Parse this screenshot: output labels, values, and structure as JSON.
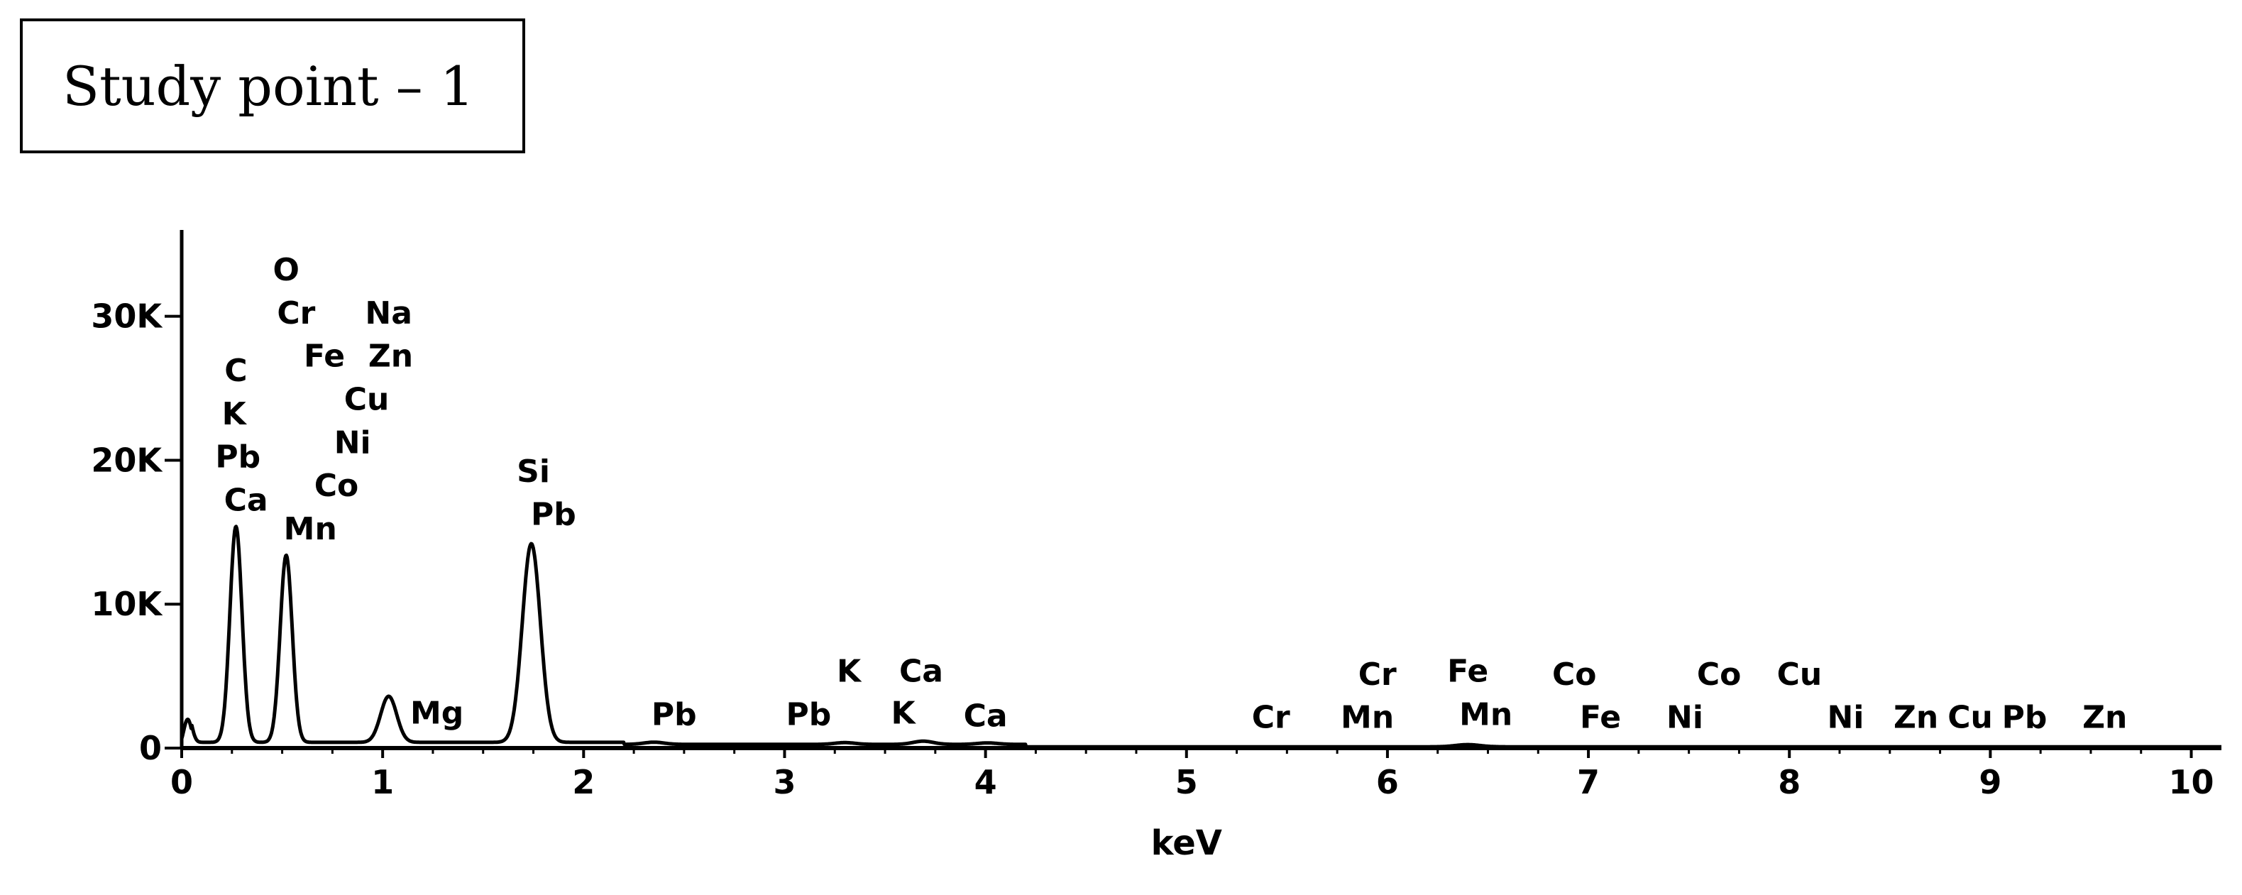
{
  "title_box": {
    "text": "Study point – 1"
  },
  "chart_data": {
    "type": "line",
    "title": "",
    "xlabel": "keV",
    "ylabel": "",
    "xlim": [
      0,
      10.15
    ],
    "ylim": [
      0,
      36000
    ],
    "x_ticks": [
      0,
      1,
      2,
      3,
      4,
      5,
      6,
      7,
      8,
      9,
      10
    ],
    "x_tick_labels": [
      "0",
      "1",
      "2",
      "3",
      "4",
      "5",
      "6",
      "7",
      "8",
      "9",
      "10"
    ],
    "y_ticks": [
      0,
      10000,
      20000,
      30000
    ],
    "y_tick_labels": [
      "0",
      "10K",
      "20K",
      "30K"
    ],
    "grid": false,
    "series": [
      {
        "peaks": [
          {
            "x": 0.03,
            "y": 2000,
            "w": 0.02
          },
          {
            "x": 0.27,
            "y": 15000,
            "w": 0.03
          },
          {
            "x": 0.52,
            "y": 13000,
            "w": 0.03
          },
          {
            "x": 1.03,
            "y": 3200,
            "w": 0.04
          },
          {
            "x": 1.74,
            "y": 13800,
            "w": 0.045
          },
          {
            "x": 2.35,
            "y": 150,
            "w": 0.05
          },
          {
            "x": 3.3,
            "y": 120,
            "w": 0.05
          },
          {
            "x": 3.69,
            "y": 220,
            "w": 0.05
          },
          {
            "x": 4.01,
            "y": 100,
            "w": 0.05
          },
          {
            "x": 6.4,
            "y": 150,
            "w": 0.06
          }
        ]
      }
    ],
    "annotations": [
      {
        "text": "O",
        "x": 0.52,
        "y": 32500
      },
      {
        "text": "Cr",
        "x": 0.57,
        "y": 29500
      },
      {
        "text": "Na",
        "x": 1.03,
        "y": 29500
      },
      {
        "text": "Fe",
        "x": 0.71,
        "y": 26500
      },
      {
        "text": "Zn",
        "x": 1.04,
        "y": 26500
      },
      {
        "text": "C",
        "x": 0.27,
        "y": 25500
      },
      {
        "text": "Cu",
        "x": 0.92,
        "y": 23500
      },
      {
        "text": "K",
        "x": 0.26,
        "y": 22500
      },
      {
        "text": "Ni",
        "x": 0.85,
        "y": 20500
      },
      {
        "text": "Pb",
        "x": 0.28,
        "y": 19500
      },
      {
        "text": "Si",
        "x": 1.75,
        "y": 18500
      },
      {
        "text": "Co",
        "x": 0.77,
        "y": 17500
      },
      {
        "text": "Ca",
        "x": 0.32,
        "y": 16500
      },
      {
        "text": "Pb",
        "x": 1.85,
        "y": 15500
      },
      {
        "text": "Mn",
        "x": 0.64,
        "y": 14500
      },
      {
        "text": "Mg",
        "x": 1.27,
        "y": 1700
      },
      {
        "text": "K",
        "x": 3.32,
        "y": 4600
      },
      {
        "text": "Ca",
        "x": 3.68,
        "y": 4600
      },
      {
        "text": "Pb",
        "x": 2.45,
        "y": 1600
      },
      {
        "text": "Pb",
        "x": 3.12,
        "y": 1600
      },
      {
        "text": "K",
        "x": 3.59,
        "y": 1700
      },
      {
        "text": "Ca",
        "x": 4.0,
        "y": 1500
      },
      {
        "text": "Cr",
        "x": 5.42,
        "y": 1400
      },
      {
        "text": "Cr",
        "x": 5.95,
        "y": 4400
      },
      {
        "text": "Mn",
        "x": 5.9,
        "y": 1400
      },
      {
        "text": "Fe",
        "x": 6.4,
        "y": 4600
      },
      {
        "text": "Mn",
        "x": 6.49,
        "y": 1600
      },
      {
        "text": "Co",
        "x": 6.93,
        "y": 4400
      },
      {
        "text": "Fe",
        "x": 7.06,
        "y": 1400
      },
      {
        "text": "Co",
        "x": 7.65,
        "y": 4400
      },
      {
        "text": "Ni",
        "x": 7.48,
        "y": 1400
      },
      {
        "text": "Cu",
        "x": 8.05,
        "y": 4400
      },
      {
        "text": "Ni",
        "x": 8.28,
        "y": 1400
      },
      {
        "text": "Zn",
        "x": 8.63,
        "y": 1400
      },
      {
        "text": "Cu",
        "x": 8.9,
        "y": 1400
      },
      {
        "text": "Pb",
        "x": 9.17,
        "y": 1400
      },
      {
        "text": "Zn",
        "x": 9.57,
        "y": 1400
      }
    ]
  }
}
